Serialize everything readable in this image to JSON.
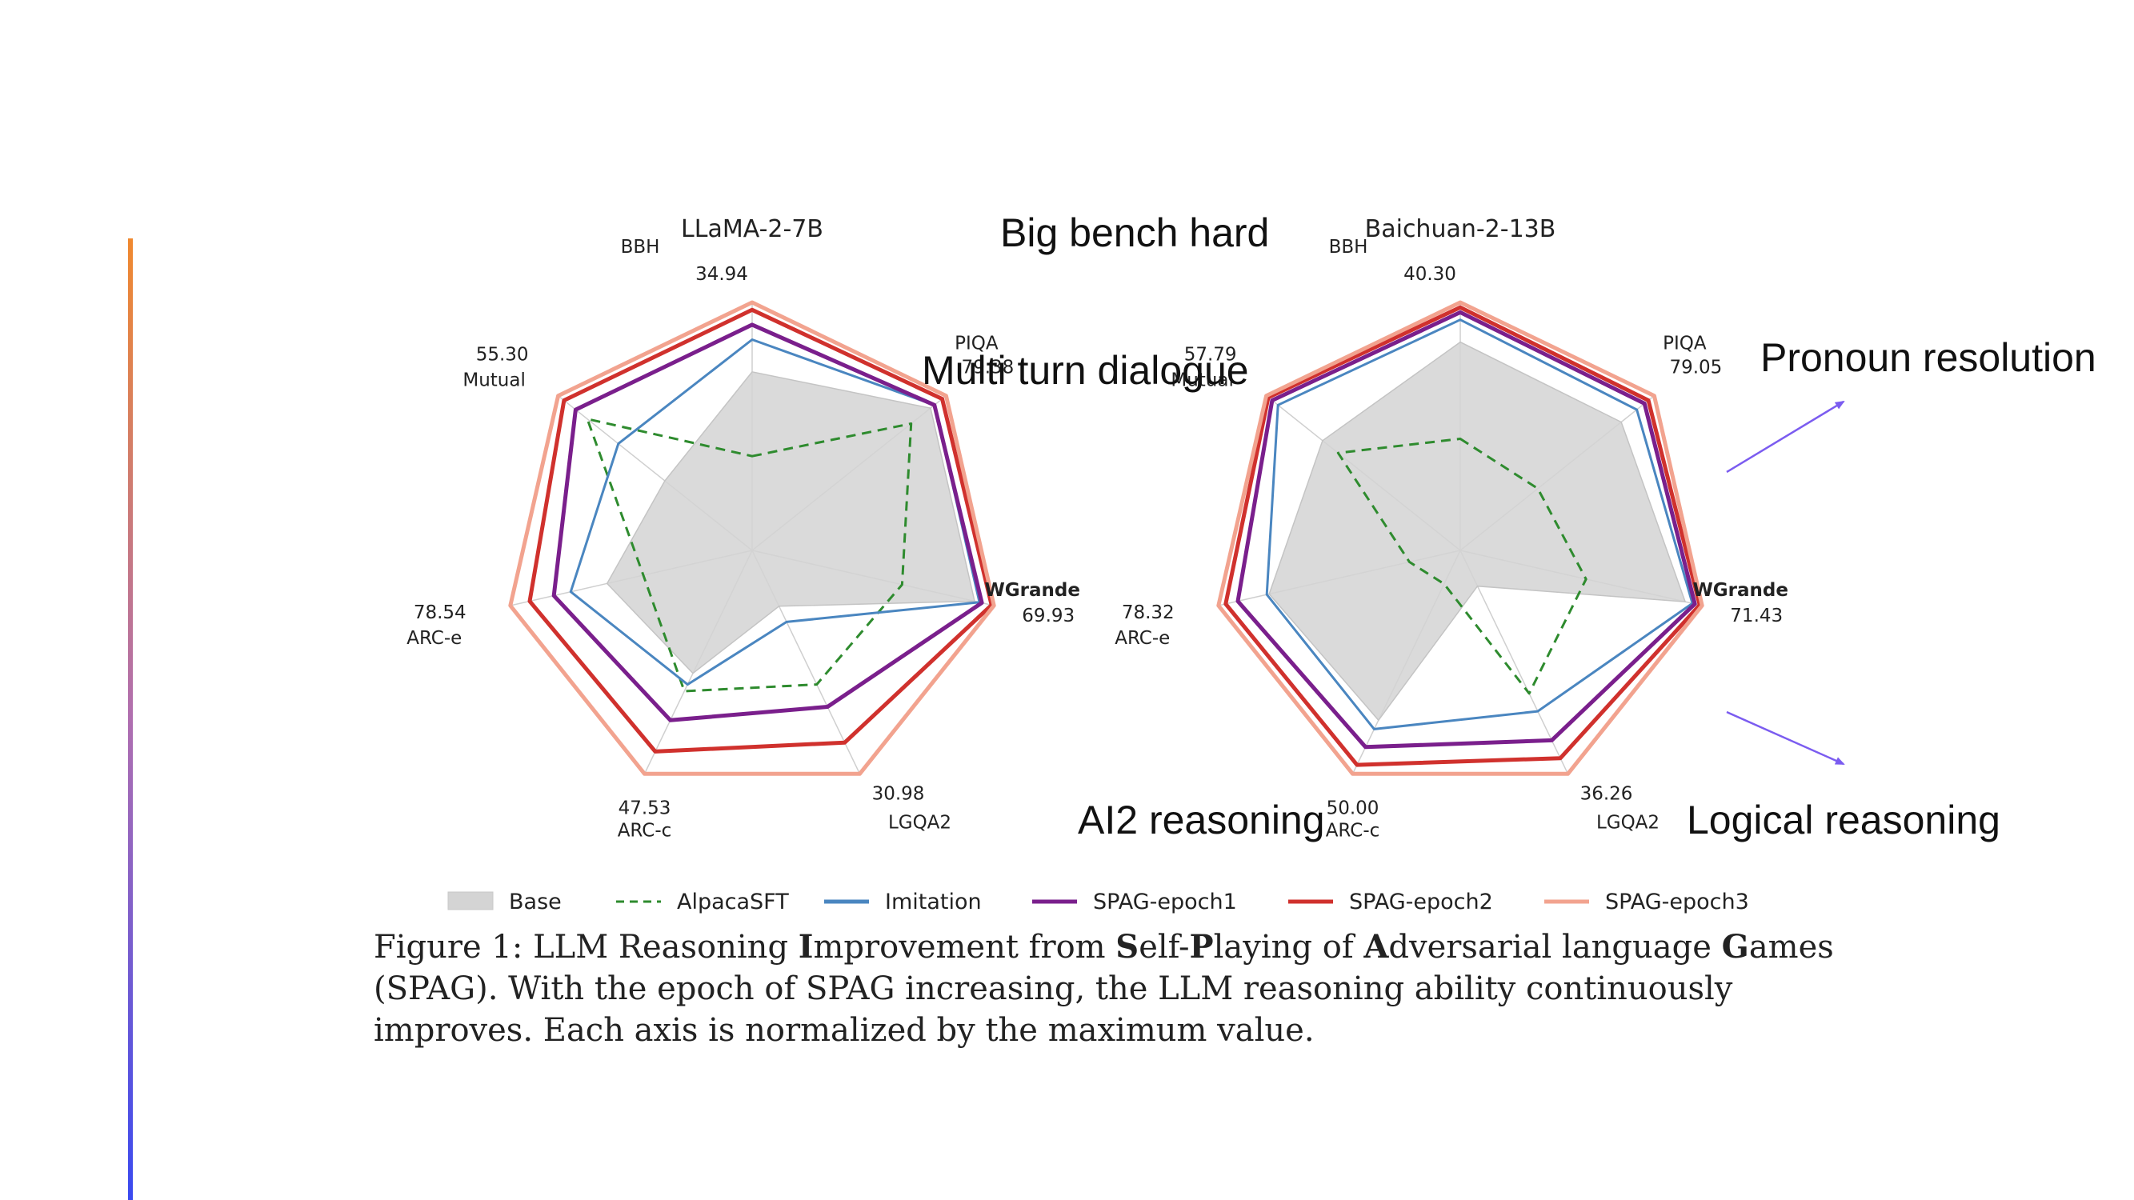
{
  "annotations": {
    "big_bench_hard": "Big bench hard",
    "multi_turn_dialogue": "Multi turn dialogue",
    "pronoun_resolution": "Pronoun resolution",
    "ai2_reasoning": "AI2 reasoning",
    "logical_reasoning": "Logical reasoning"
  },
  "caption": {
    "label": "Figure 1:",
    "title_parts": [
      {
        "t": "LLM Reasoning ",
        "b": false
      },
      {
        "t": "I",
        "b": true
      },
      {
        "t": "mprovement from ",
        "b": false
      },
      {
        "t": "S",
        "b": true
      },
      {
        "t": "elf-",
        "b": false
      },
      {
        "t": "P",
        "b": true
      },
      {
        "t": "laying of ",
        "b": false
      },
      {
        "t": "A",
        "b": true
      },
      {
        "t": "dversarial language ",
        "b": false
      },
      {
        "t": "G",
        "b": true
      },
      {
        "t": "ames (SPAG).",
        "b": false
      }
    ],
    "body": "With the epoch of SPAG increasing, the LLM reasoning ability continuously improves. Each axis is normalized by the maximum value."
  },
  "colors": {
    "accent_gradient": [
      "#f0892f",
      "#b06fb0",
      "#3a4af0"
    ],
    "arrow": "#7b5cf0",
    "grid": "#cfcfcf"
  },
  "chart_data": [
    {
      "type": "radar",
      "title": "LLaMA-2-7B",
      "axes": [
        "BBH",
        "PIQA",
        "WGrande",
        "LGQA2",
        "ARC-c",
        "ARC-e",
        "Mutual"
      ],
      "axis_max_values": [
        "34.94",
        "79.38",
        "69.93",
        "30.98",
        "47.53",
        "78.54",
        "55.30"
      ],
      "rlim": [
        0,
        1
      ],
      "series": [
        {
          "name": "Base",
          "values": [
            0.72,
            0.92,
            0.92,
            0.25,
            0.55,
            0.6,
            0.45
          ]
        },
        {
          "name": "AlpacaSFT",
          "values": [
            0.38,
            0.82,
            0.62,
            0.6,
            0.63,
            0.45,
            0.85
          ]
        },
        {
          "name": "Imitation",
          "values": [
            0.85,
            0.94,
            0.94,
            0.32,
            0.6,
            0.75,
            0.69
          ]
        },
        {
          "name": "SPAG-epoch1",
          "values": [
            0.91,
            0.94,
            0.95,
            0.7,
            0.76,
            0.82,
            0.91
          ]
        },
        {
          "name": "SPAG-epoch2",
          "values": [
            0.97,
            0.98,
            0.99,
            0.86,
            0.9,
            0.92,
            0.97
          ]
        },
        {
          "name": "SPAG-epoch3",
          "values": [
            1.0,
            1.0,
            1.0,
            1.0,
            1.0,
            1.0,
            1.0
          ]
        }
      ]
    },
    {
      "type": "radar",
      "title": "Baichuan-2-13B",
      "axes": [
        "BBH",
        "PIQA",
        "WGrande",
        "LGQA2",
        "ARC-c",
        "ARC-e",
        "Mutual"
      ],
      "axis_max_values": [
        "40.30",
        "79.05",
        "71.43",
        "36.26",
        "50.00",
        "78.32",
        "57.79"
      ],
      "rlim": [
        0,
        1
      ],
      "series": [
        {
          "name": "Base",
          "values": [
            0.84,
            0.83,
            0.93,
            0.16,
            0.76,
            0.79,
            0.71
          ]
        },
        {
          "name": "AlpacaSFT",
          "values": [
            0.45,
            0.4,
            0.52,
            0.64,
            0.15,
            0.21,
            0.63
          ]
        },
        {
          "name": "Imitation",
          "values": [
            0.93,
            0.91,
            0.96,
            0.72,
            0.8,
            0.8,
            0.94
          ]
        },
        {
          "name": "SPAG-epoch1",
          "values": [
            0.96,
            0.95,
            0.97,
            0.85,
            0.88,
            0.92,
            0.97
          ]
        },
        {
          "name": "SPAG-epoch2",
          "values": [
            0.98,
            0.97,
            0.99,
            0.93,
            0.96,
            0.97,
            0.99
          ]
        },
        {
          "name": "SPAG-epoch3",
          "values": [
            1.0,
            1.0,
            1.0,
            1.0,
            1.0,
            1.0,
            1.0
          ]
        }
      ]
    }
  ],
  "legend": {
    "placement": "bottom",
    "items": [
      {
        "name": "Base",
        "color": "#d4d4d4",
        "style": "fill"
      },
      {
        "name": "AlpacaSFT",
        "color": "#2e8b2e",
        "style": "dashed"
      },
      {
        "name": "Imitation",
        "color": "#4a86c0",
        "style": "line"
      },
      {
        "name": "SPAG-epoch1",
        "color": "#7a1f8c",
        "style": "line"
      },
      {
        "name": "SPAG-epoch2",
        "color": "#d0312d",
        "style": "line"
      },
      {
        "name": "SPAG-epoch3",
        "color": "#f2a38f",
        "style": "line"
      }
    ]
  }
}
